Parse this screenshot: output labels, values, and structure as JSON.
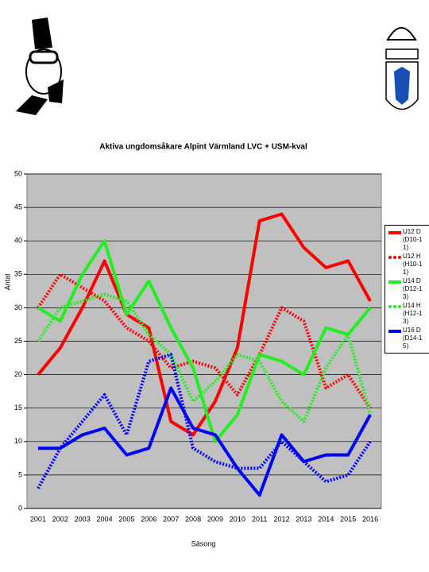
{
  "chart_data": {
    "type": "line",
    "title": "Aktiva ungdomsåkare Alpint Värmland LVC + USM-kval",
    "x_label": "Säsong",
    "y_label": "Antal",
    "categories": [
      "2001",
      "2002",
      "2003",
      "2004",
      "2005",
      "2006",
      "2007",
      "2008",
      "2009",
      "2010",
      "2011",
      "2012",
      "2013",
      "2014",
      "2015",
      "2016"
    ],
    "ylim": [
      0,
      50
    ],
    "yticks": [
      0,
      5,
      10,
      15,
      20,
      25,
      30,
      35,
      40,
      45,
      50
    ],
    "grid": true,
    "series": [
      {
        "name": "U12 D (D10-11)",
        "color": "#ff0000",
        "dashed": false,
        "values": [
          20,
          24,
          30,
          37,
          29,
          27,
          13,
          11,
          16,
          24,
          43,
          44,
          39,
          36,
          37,
          31
        ]
      },
      {
        "name": "U12 H (H10-11)",
        "color": "#ff0000",
        "dashed": true,
        "values": [
          30,
          35,
          33,
          31,
          27,
          25,
          21,
          22,
          21,
          17,
          23,
          30,
          28,
          18,
          20,
          15
        ]
      },
      {
        "name": "U14 D (D12-13)",
        "color": "#22ee22",
        "dashed": false,
        "values": [
          30,
          28,
          35,
          40,
          29,
          34,
          27,
          21,
          10,
          14,
          23,
          22,
          20,
          27,
          26,
          30
        ]
      },
      {
        "name": "U14 H (H12-13)",
        "color": "#22ee22",
        "dashed": true,
        "values": [
          25,
          30,
          31,
          32,
          31,
          26,
          23,
          16,
          19,
          23,
          22,
          16,
          13,
          21,
          26,
          14
        ]
      },
      {
        "name": "U16 D (D14-15)",
        "color": "#0000ff",
        "dashed": false,
        "values": [
          9,
          9,
          11,
          12,
          8,
          9,
          18,
          12,
          11,
          6,
          2,
          11,
          7,
          8,
          8,
          14
        ]
      },
      {
        "color": "#0000ff",
        "dashed": true,
        "values": [
          3,
          9,
          13,
          17,
          11,
          22,
          23,
          9,
          7,
          6,
          6,
          10,
          7,
          4,
          5,
          10
        ]
      }
    ]
  }
}
